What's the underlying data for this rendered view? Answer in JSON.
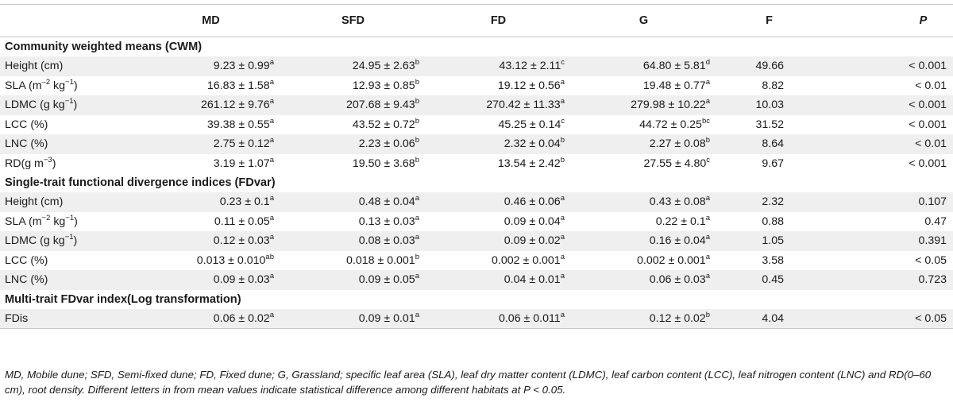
{
  "columns": [
    "MD",
    "SFD",
    "FD",
    "G",
    "F",
    "P"
  ],
  "sections": [
    {
      "title": "Community weighted means (CWM)",
      "rows": [
        {
          "label": "Height (cm)",
          "label_sup": "",
          "label_after": "",
          "cells": [
            {
              "v": "9.23 ± 0.99",
              "s": "a"
            },
            {
              "v": "24.95 ± 2.63",
              "s": "b"
            },
            {
              "v": "43.12 ± 2.11",
              "s": "c"
            },
            {
              "v": "64.80 ± 5.81",
              "s": "d"
            },
            {
              "v": "49.66",
              "s": ""
            },
            {
              "v": "< 0.001",
              "s": ""
            }
          ]
        },
        {
          "label": "SLA (m",
          "label_sup": "–2",
          "label_after": " kg",
          "label_sup2": "−1",
          "label_end": ")",
          "cells": [
            {
              "v": "16.83 ± 1.58",
              "s": "a"
            },
            {
              "v": "12.93 ± 0.85",
              "s": "b"
            },
            {
              "v": "19.12 ± 0.56",
              "s": "a"
            },
            {
              "v": "19.48 ± 0.77",
              "s": "a"
            },
            {
              "v": "8.82",
              "s": ""
            },
            {
              "v": "< 0.01",
              "s": ""
            }
          ]
        },
        {
          "label": "LDMC (g kg",
          "label_sup": "−1",
          "label_after": ")",
          "cells": [
            {
              "v": "261.12 ± 9.76",
              "s": "a"
            },
            {
              "v": "207.68 ± 9.43",
              "s": "b"
            },
            {
              "v": "270.42 ± 11.33",
              "s": "a"
            },
            {
              "v": "279.98 ± 10.22",
              "s": "a"
            },
            {
              "v": "10.03",
              "s": ""
            },
            {
              "v": "< 0.001",
              "s": ""
            }
          ]
        },
        {
          "label": "LCC (%)",
          "label_sup": "",
          "label_after": "",
          "cells": [
            {
              "v": "39.38 ± 0.55",
              "s": "a"
            },
            {
              "v": "43.52 ± 0.72",
              "s": "b"
            },
            {
              "v": "45.25 ± 0.14",
              "s": "c"
            },
            {
              "v": "44.72 ± 0.25",
              "s": "bc"
            },
            {
              "v": "31.52",
              "s": ""
            },
            {
              "v": "< 0.001",
              "s": ""
            }
          ]
        },
        {
          "label": "LNC (%)",
          "label_sup": "",
          "label_after": "",
          "cells": [
            {
              "v": "2.75 ± 0.12",
              "s": "a"
            },
            {
              "v": "2.23 ± 0.06",
              "s": "b"
            },
            {
              "v": "2.32 ± 0.04",
              "s": "b"
            },
            {
              "v": "2.27 ± 0.08",
              "s": "b"
            },
            {
              "v": "8.64",
              "s": ""
            },
            {
              "v": "< 0.01",
              "s": ""
            }
          ]
        },
        {
          "label": "RD(g m",
          "label_sup": "−3",
          "label_after": ")",
          "cells": [
            {
              "v": "3.19 ± 1.07",
              "s": "a"
            },
            {
              "v": "19.50 ± 3.68",
              "s": "b"
            },
            {
              "v": "13.54 ± 2.42",
              "s": "b"
            },
            {
              "v": "27.55 ± 4.80",
              "s": "c"
            },
            {
              "v": "9.67",
              "s": ""
            },
            {
              "v": "< 0.001",
              "s": ""
            }
          ]
        }
      ]
    },
    {
      "title": "Single-trait functional divergence indices (FDvar)",
      "rows": [
        {
          "label": "Height (cm)",
          "label_sup": "",
          "label_after": "",
          "cells": [
            {
              "v": "0.23 ± 0.1",
              "s": "a"
            },
            {
              "v": "0.48 ± 0.04",
              "s": "a"
            },
            {
              "v": "0.46 ± 0.06",
              "s": "a"
            },
            {
              "v": "0.43 ± 0.08",
              "s": "a"
            },
            {
              "v": "2.32",
              "s": ""
            },
            {
              "v": "0.107",
              "s": ""
            }
          ]
        },
        {
          "label": "SLA (m",
          "label_sup": "−2",
          "label_after": " kg",
          "label_sup2": "−1",
          "label_end": ")",
          "cells": [
            {
              "v": "0.11 ± 0.05",
              "s": "a"
            },
            {
              "v": "0.13 ± 0.03",
              "s": "a"
            },
            {
              "v": "0.09 ± 0.04",
              "s": "a"
            },
            {
              "v": "0.22 ± 0.1",
              "s": "a"
            },
            {
              "v": "0.88",
              "s": ""
            },
            {
              "v": "0.47",
              "s": ""
            }
          ]
        },
        {
          "label": "LDMC (g kg",
          "label_sup": "−1",
          "label_after": ")",
          "cells": [
            {
              "v": "0.12 ± 0.03",
              "s": "a"
            },
            {
              "v": "0.08 ± 0.03",
              "s": "a"
            },
            {
              "v": "0.09 ± 0.02",
              "s": "a"
            },
            {
              "v": "0.16 ± 0.04",
              "s": "a"
            },
            {
              "v": "1.05",
              "s": ""
            },
            {
              "v": "0.391",
              "s": ""
            }
          ]
        },
        {
          "label": "LCC (%)",
          "label_sup": "",
          "label_after": "",
          "cells": [
            {
              "v": "0.013 ± 0.010",
              "s": "ab"
            },
            {
              "v": "0.018 ± 0.001",
              "s": "b"
            },
            {
              "v": "0.002 ± 0.001",
              "s": "a"
            },
            {
              "v": "0.002 ± 0.001",
              "s": "a"
            },
            {
              "v": "3.58",
              "s": ""
            },
            {
              "v": "< 0.05",
              "s": ""
            }
          ]
        },
        {
          "label": "LNC (%)",
          "label_sup": "",
          "label_after": "",
          "cells": [
            {
              "v": "0.09 ± 0.03",
              "s": "a"
            },
            {
              "v": "0.09 ± 0.05",
              "s": "a"
            },
            {
              "v": "0.04 ± 0.01",
              "s": "a"
            },
            {
              "v": "0.06 ± 0.03",
              "s": "a"
            },
            {
              "v": "0.45",
              "s": ""
            },
            {
              "v": "0.723",
              "s": ""
            }
          ]
        }
      ]
    },
    {
      "title": "Multi-trait FDvar index(Log transformation)",
      "rows": [
        {
          "label": "FDis",
          "label_sup": "",
          "label_after": "",
          "cells": [
            {
              "v": "0.06 ± 0.02",
              "s": "a"
            },
            {
              "v": "0.09 ± 0.01",
              "s": "a"
            },
            {
              "v": "0.06 ± 0.011",
              "s": "a"
            },
            {
              "v": "0.12 ± 0.02",
              "s": "b"
            },
            {
              "v": "4.04",
              "s": ""
            },
            {
              "v": "< 0.05",
              "s": ""
            }
          ]
        }
      ]
    }
  ],
  "footnote": "MD, Mobile dune; SFD, Semi-fixed dune; FD, Fixed dune; G, Grassland; specific leaf area (SLA), leaf dry matter content (LDMC), leaf carbon content (LCC), leaf nitrogen content (LNC) and RD(0–60 cm), root density. Different letters in from mean values indicate statistical difference among different habitats at P < 0.05."
}
